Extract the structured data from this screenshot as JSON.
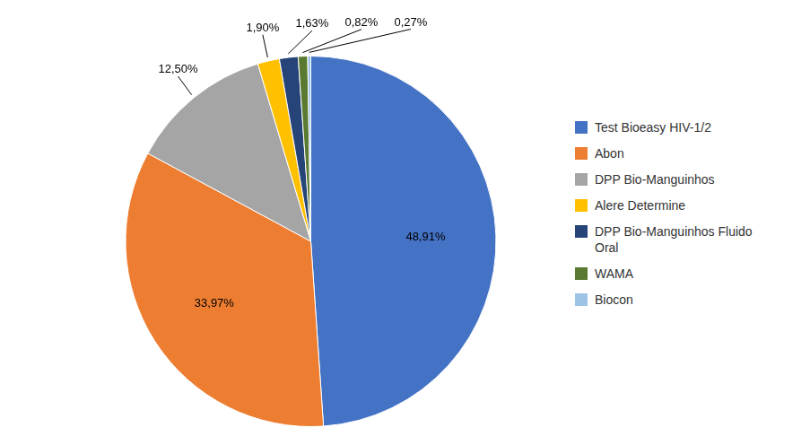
{
  "chart_data": {
    "type": "pie",
    "categories": [
      "Test Bioeasy HIV-1/2",
      "Abon",
      "DPP Bio-Manguinhos",
      "Alere Determine",
      "DPP Bio-Manguinhos Fluido\nOral",
      "WAMA",
      "Biocon"
    ],
    "values": [
      48.91,
      33.97,
      12.5,
      1.9,
      1.63,
      0.82,
      0.27
    ],
    "value_labels": [
      "48,91%",
      "33,97%",
      "12,50%",
      "1,90%",
      "1,63%",
      "0,82%",
      "0,27%"
    ],
    "colors": [
      "#4472C4",
      "#ED7D31",
      "#A5A5A5",
      "#FFC000",
      "#264478",
      "#5A7A32",
      "#9DC3E6"
    ],
    "data_labels": true,
    "legend": "right"
  }
}
